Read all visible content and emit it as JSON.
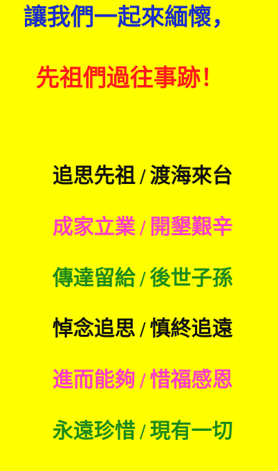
{
  "heading": {
    "line1": "讓我們一起來緬懷，",
    "line2": "先祖們過往事跡！"
  },
  "verses": [
    {
      "left": "追思先祖",
      "sep": "/",
      "right": "渡海來台"
    },
    {
      "left": "成家立業",
      "sep": "/",
      "right": "開墾艱辛"
    },
    {
      "left": "傳達留給",
      "sep": "/",
      "right": "後世子孫"
    },
    {
      "left": "悼念追思",
      "sep": "/",
      "right": "慎終追遠"
    },
    {
      "left": "進而能夠",
      "sep": "/",
      "right": "惜福感恩"
    },
    {
      "left": "永遠珍惜",
      "sep": "/",
      "right": "現有一切"
    }
  ],
  "colors": {
    "background": "#ffff00",
    "heading_line1": "#1a2ecb",
    "heading_line2": "#ff1a1a",
    "verse_black": "#111111",
    "verse_pink": "#ff3cc8",
    "verse_green": "#1c8a1c"
  }
}
